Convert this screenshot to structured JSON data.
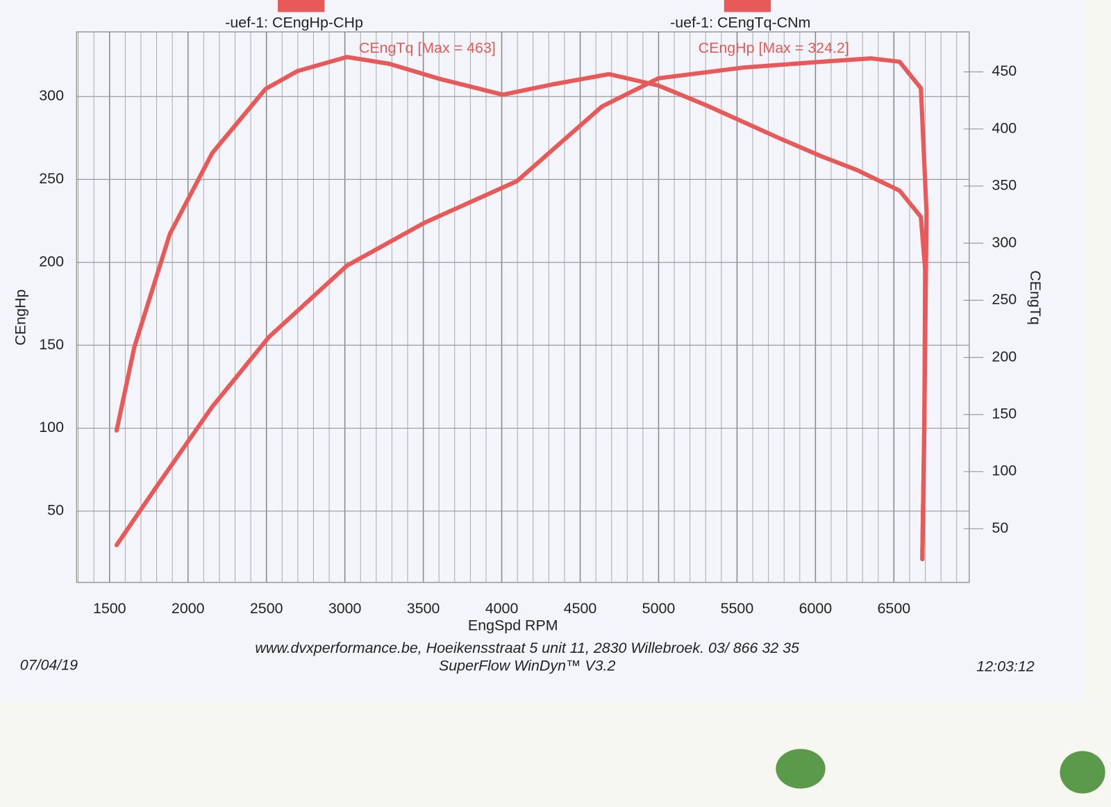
{
  "chart_data": {
    "type": "line",
    "legend": [
      "-uef-1: CEngHp-CHp",
      "-uef-1: CEngTq-CNm"
    ],
    "annotations": [
      "CEngTq [Max = 463]",
      "CEngHp [Max = 324.2]"
    ],
    "xlabel": "EngSpd RPM",
    "ylabel": "CEngHp",
    "y2label": "CEngTq",
    "xlim": [
      1290,
      6980
    ],
    "xticks": [
      1500,
      2000,
      2500,
      3000,
      3500,
      4000,
      4500,
      5000,
      5500,
      6000,
      6500
    ],
    "ylim": [
      7,
      339
    ],
    "yticks": [
      50,
      100,
      150,
      200,
      250,
      300
    ],
    "y2lim": [
      3,
      485
    ],
    "y2ticks": [
      50,
      100,
      150,
      200,
      250,
      300,
      350,
      400,
      450
    ],
    "grid": true,
    "series": [
      {
        "name": "CEngHp",
        "color": "#e8595a",
        "x": [
          1545,
          1794,
          2155,
          2516,
          3013,
          3510,
          4097,
          4639,
          4999,
          5542,
          6039,
          6355,
          6536,
          6672,
          6708,
          6694,
          6681
        ],
        "values": [
          29.5,
          64,
          113,
          155,
          198,
          224,
          249,
          294,
          311,
          317.5,
          321,
          323,
          321,
          305,
          230,
          102,
          21
        ]
      },
      {
        "name": "CEngTq",
        "color": "#e8595a",
        "axis": "y2",
        "x": [
          1545,
          1658,
          1884,
          2155,
          2494,
          2697,
          3013,
          3284,
          3600,
          4007,
          4323,
          4684,
          4999,
          5316,
          5768,
          6039,
          6265,
          6536,
          6672,
          6699,
          6694,
          6681
        ],
        "values": [
          136,
          209,
          308,
          379,
          435,
          450.6,
          463,
          457,
          444,
          430,
          439,
          448,
          438,
          420,
          392,
          376,
          364,
          346,
          323,
          277,
          141,
          24
        ]
      }
    ],
    "footer": [
      "www.dvxperformance.be, Hoeikensstraat 5 unit 11, 2830 Willebroek. 03/ 866 32 35",
      "SuperFlow WinDyn™ V3.2"
    ],
    "date": "07/04/19",
    "time": "12:03:12"
  }
}
